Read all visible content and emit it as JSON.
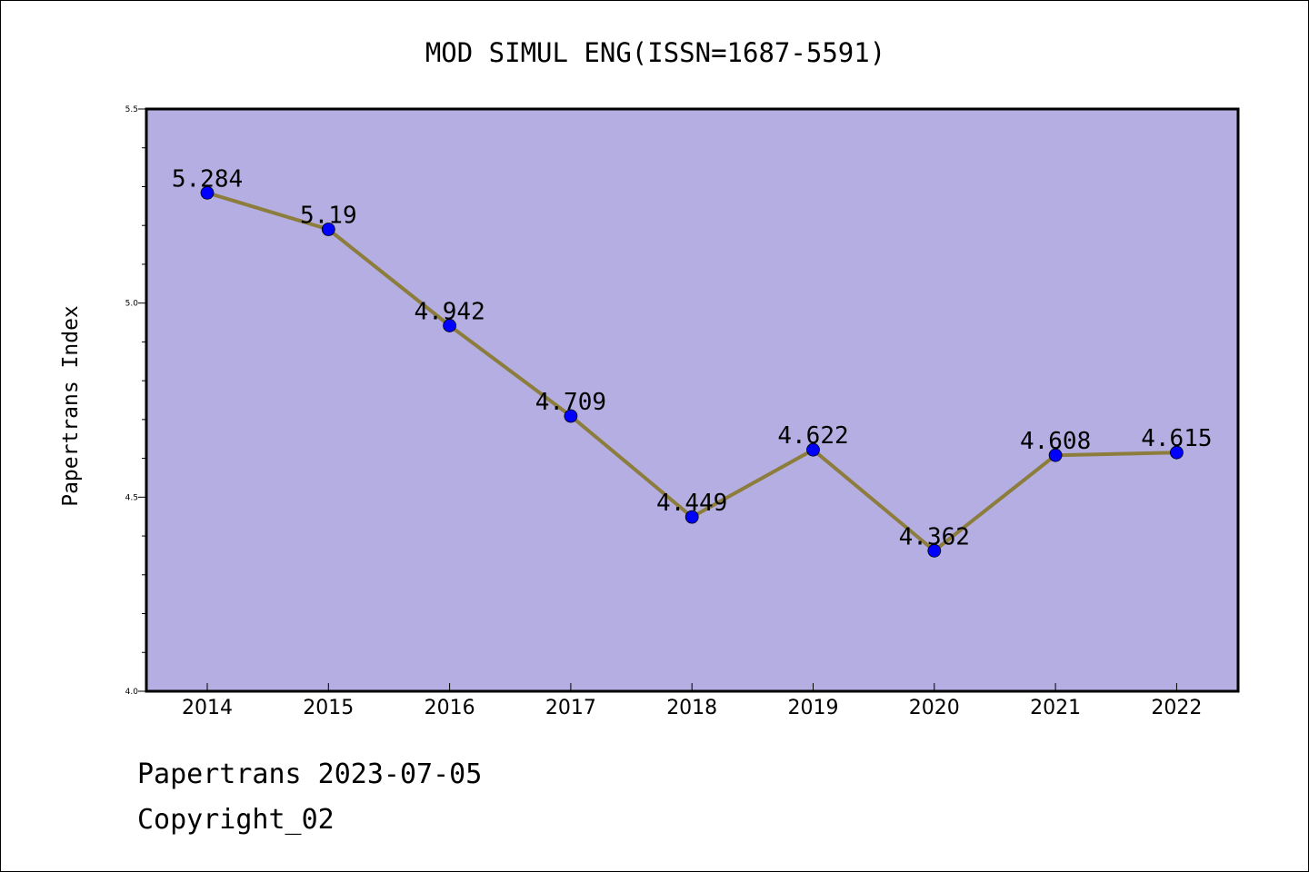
{
  "chart_data": {
    "type": "line",
    "title": "MOD SIMUL ENG(ISSN=1687-5591)",
    "xlabel": "",
    "ylabel": "Papertrans Index",
    "categories": [
      "2014",
      "2015",
      "2016",
      "2017",
      "2018",
      "2019",
      "2020",
      "2021",
      "2022"
    ],
    "series": [
      {
        "values": [
          5.284,
          5.19,
          4.942,
          4.709,
          4.449,
          4.622,
          4.362,
          4.608,
          4.615
        ],
        "labels": [
          "5.284",
          "5.19",
          "4.942",
          "4.709",
          "4.449",
          "4.622",
          "4.362",
          "4.608",
          "4.615"
        ]
      }
    ],
    "ylim": [
      4.0,
      5.5
    ],
    "yticks": [
      "4.0",
      "4.5",
      "5.0",
      "5.5"
    ],
    "grid": false,
    "colors": {
      "plot_background": "#b4aee2",
      "line": "#8c7d3c",
      "marker": "#0000ff"
    }
  },
  "footer": {
    "date_line": "Papertrans 2023-07-05",
    "copyright_line": "Copyright_02"
  }
}
